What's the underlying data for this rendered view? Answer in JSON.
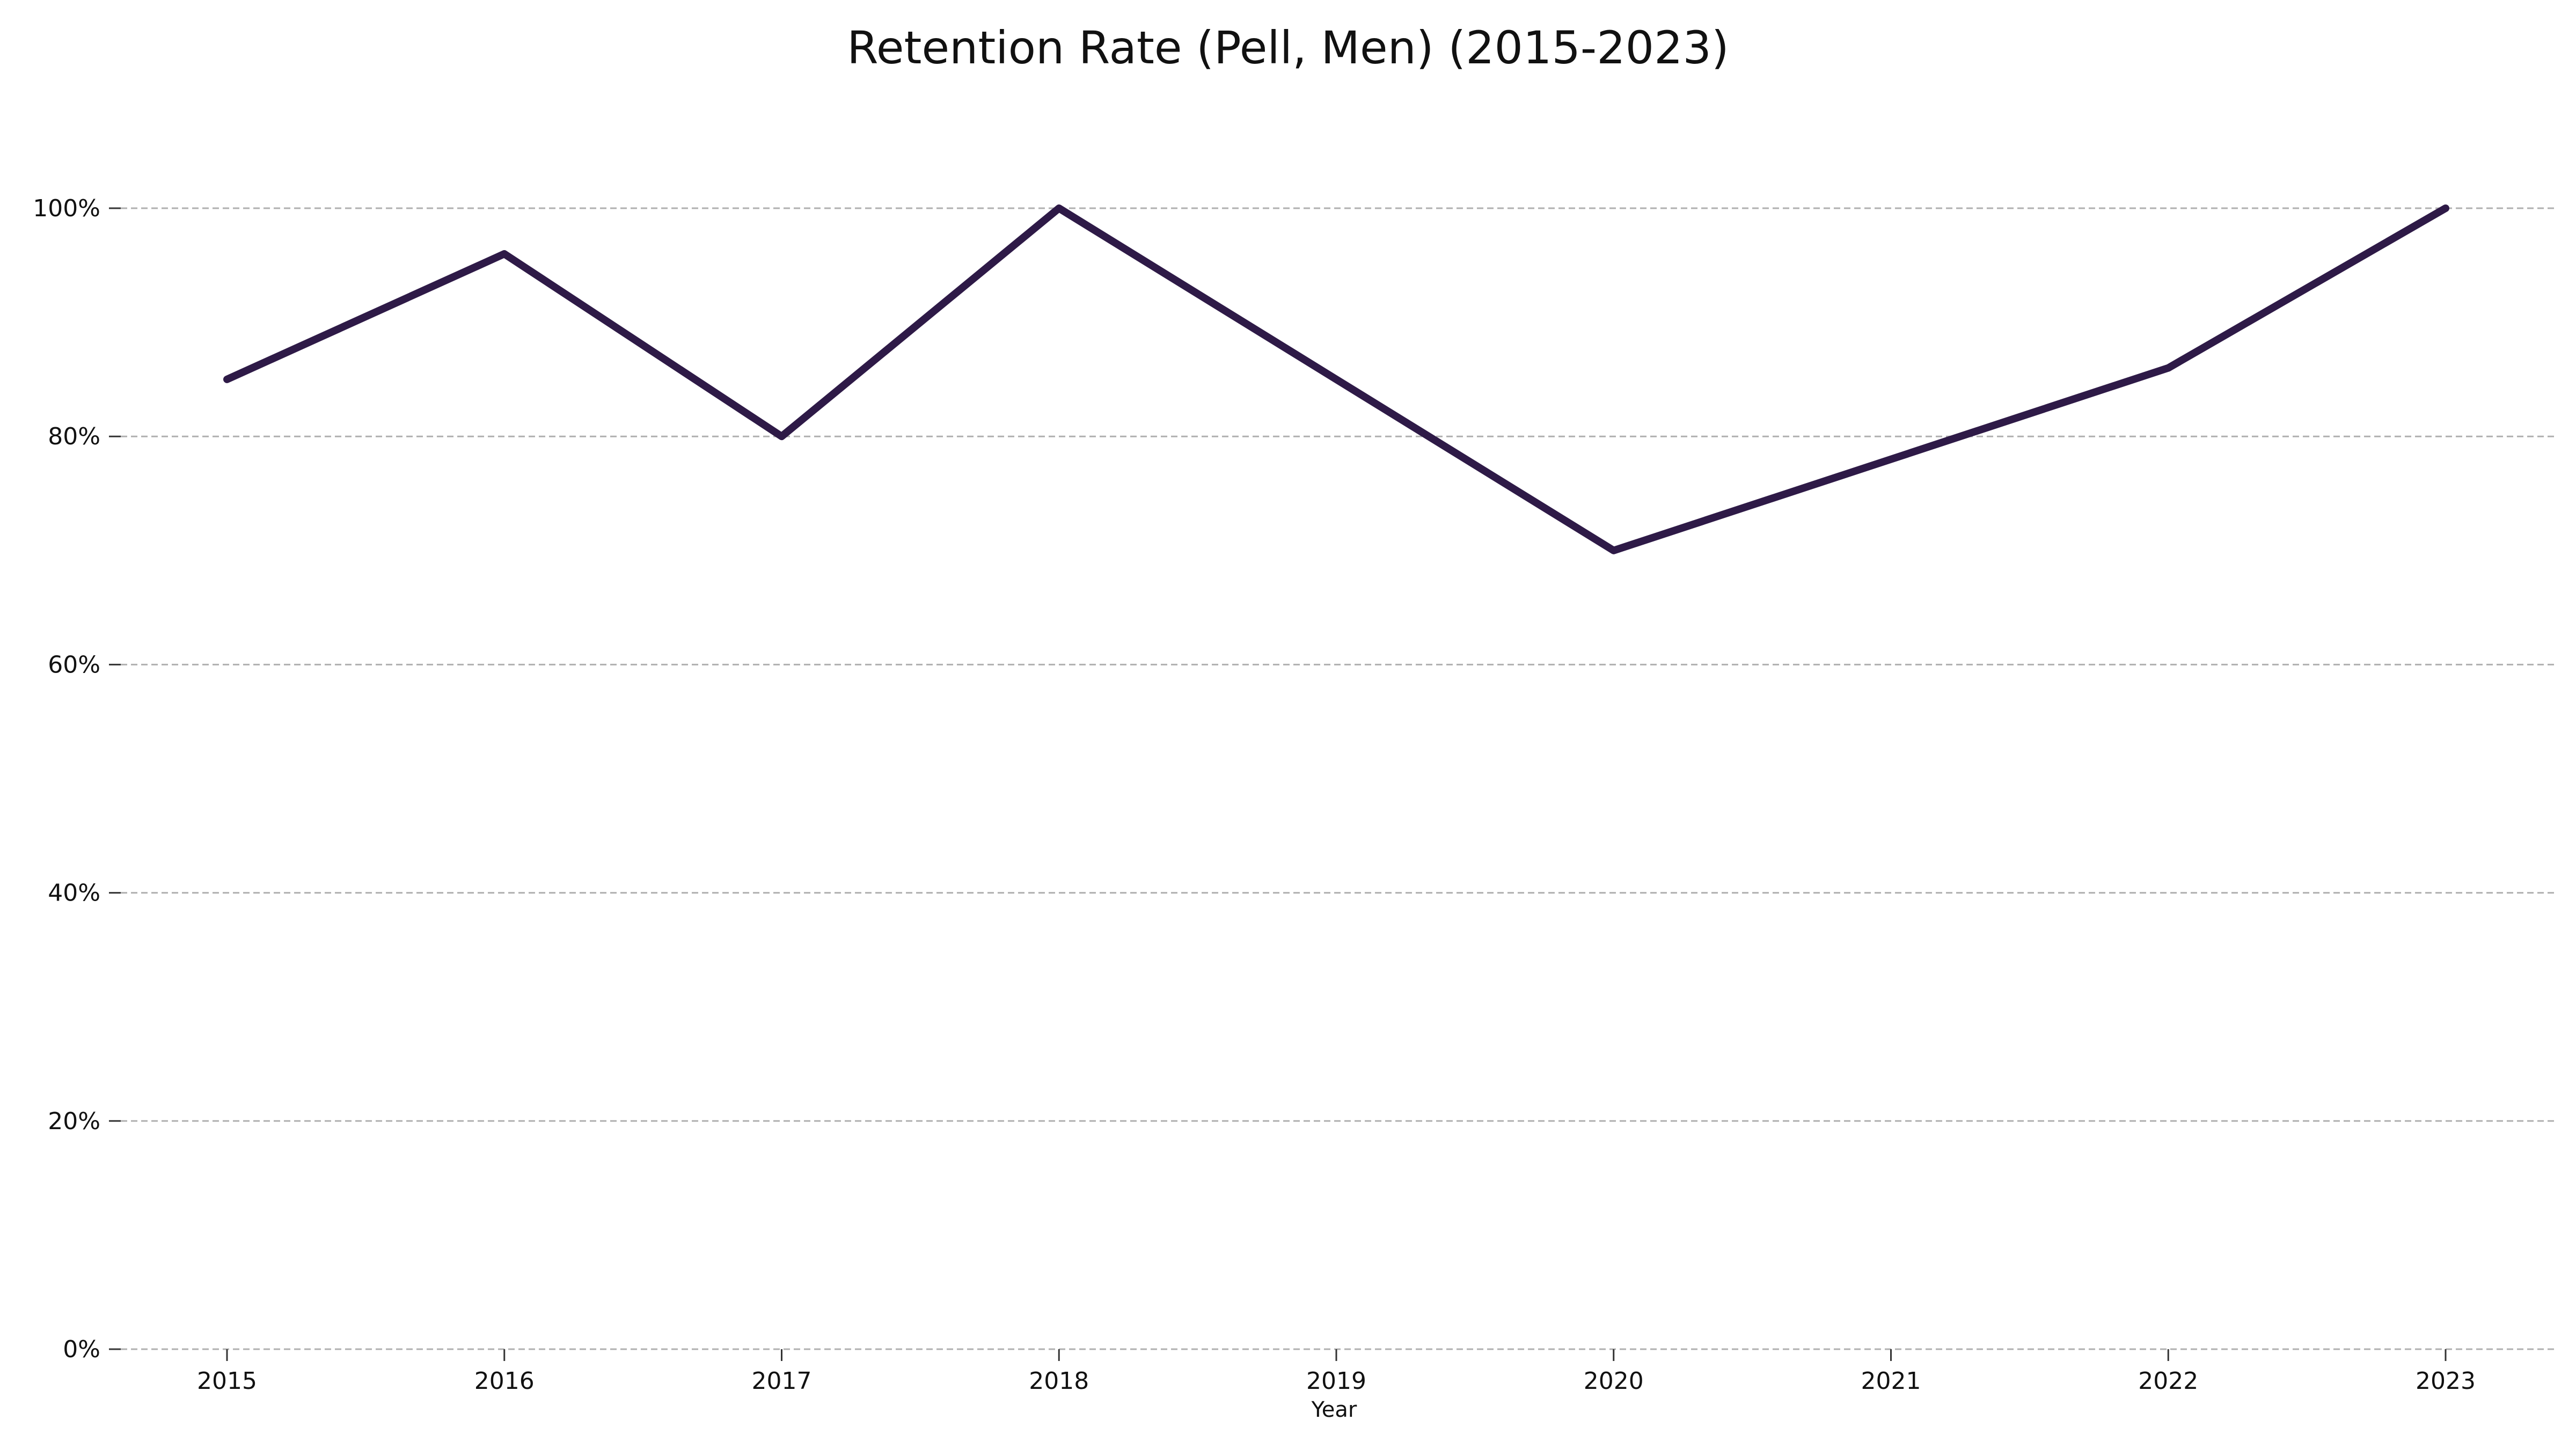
{
  "chart_data": {
    "type": "line",
    "title": "Retention Rate (Pell, Men) (2015-2023)",
    "xlabel": "Year",
    "ylabel": "",
    "x": [
      "2015",
      "2016",
      "2017",
      "2018",
      "2019",
      "2020",
      "2021",
      "2022",
      "2023"
    ],
    "series": [
      {
        "color": "#2e1a47",
        "values": [
          85,
          96,
          80,
          100,
          85,
          70,
          78,
          86,
          100
        ]
      }
    ],
    "ylim": [
      0,
      100
    ],
    "yticks": [
      {
        "value": 0,
        "label": "0%"
      },
      {
        "value": 20,
        "label": "20%"
      },
      {
        "value": 40,
        "label": "40%"
      },
      {
        "value": 60,
        "label": "60%"
      },
      {
        "value": 80,
        "label": "80%"
      },
      {
        "value": 100,
        "label": "100%"
      }
    ],
    "grid": "horizontal dashed",
    "legend": "none"
  }
}
